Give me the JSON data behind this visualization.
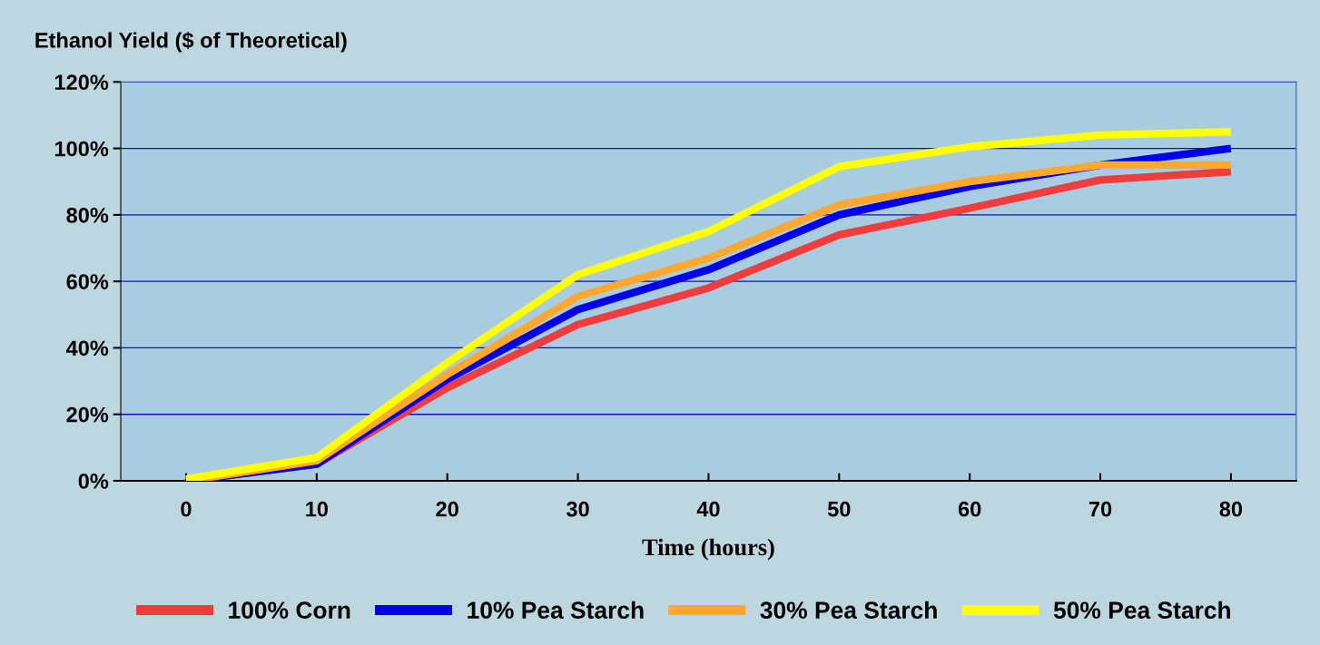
{
  "chart_data": {
    "type": "line",
    "title": "Ethanol Yield ($ of Theoretical)",
    "xlabel": "Time (hours)",
    "categories": [
      "0",
      "10",
      "20",
      "30",
      "40",
      "50",
      "60",
      "70",
      "80"
    ],
    "series": [
      {
        "name": "100% Corn",
        "color": "#f03c3c",
        "values": [
          0,
          5,
          28,
          47,
          58,
          74,
          82,
          90.5,
          93
        ]
      },
      {
        "name": "10% Pea Starch",
        "color": "#0000ee",
        "values": [
          0,
          5,
          30.5,
          51.5,
          63.5,
          80,
          88.5,
          95,
          100
        ]
      },
      {
        "name": "30% Pea Starch",
        "color": "#ffa830",
        "values": [
          0,
          6,
          32,
          55.5,
          67,
          83,
          90,
          95,
          95
        ]
      },
      {
        "name": "50% Pea Starch",
        "color": "#ffff00",
        "values": [
          0.5,
          7,
          35.5,
          62,
          75,
          94.5,
          100.5,
          104,
          105
        ]
      }
    ],
    "ylim": [
      0,
      120
    ],
    "yticks": [
      {
        "value": 0,
        "label": "0%"
      },
      {
        "value": 20,
        "label": "20%"
      },
      {
        "value": 40,
        "label": "40%"
      },
      {
        "value": 60,
        "label": "60%"
      },
      {
        "value": 80,
        "label": "80%"
      },
      {
        "value": 100,
        "label": "100%"
      },
      {
        "value": 120,
        "label": "120%"
      }
    ],
    "grid": "y",
    "legend": "bottom",
    "marker": "none",
    "line_style": "solid"
  }
}
